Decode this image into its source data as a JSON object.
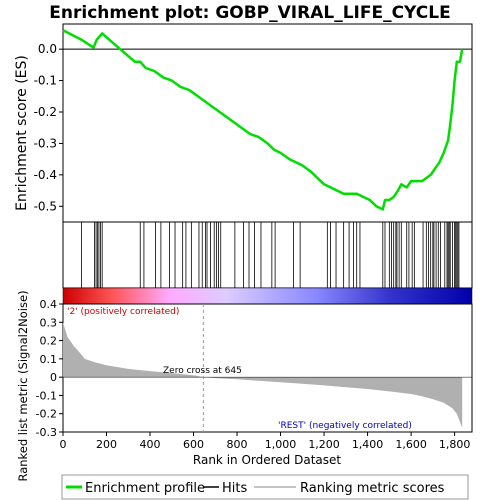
{
  "chart_data": {
    "type": "line",
    "title": "Enrichment plot: GOBP_VIRAL_LIFE_CYCLE",
    "panels": {
      "es": {
        "ylabel": "Enrichment score (ES)",
        "ylim": [
          -0.55,
          0.08
        ],
        "yticks": [
          0.0,
          -0.1,
          -0.2,
          -0.3,
          -0.4,
          -0.5
        ],
        "ytick_labels": [
          "0.0",
          "-0.1",
          "-0.2",
          "-0.3",
          "-0.4",
          "-0.5"
        ],
        "series": [
          {
            "color": "#00dd00",
            "x": [
              0,
              85,
              140,
              155,
              180,
              230,
              280,
              330,
              355,
              380,
              420,
              460,
              500,
              540,
              580,
              620,
              660,
              700,
              740,
              780,
              820,
              860,
              900,
              940,
              970,
              1000,
              1040,
              1070,
              1100,
              1140,
              1170,
              1200,
              1230,
              1260,
              1290,
              1320,
              1350,
              1380,
              1410,
              1440,
              1470,
              1480,
              1500,
              1520,
              1540,
              1555,
              1580,
              1600,
              1620,
              1650,
              1670,
              1690,
              1710,
              1730,
              1750,
              1770,
              1780,
              1790,
              1800,
              1810,
              1825,
              1835
            ],
            "y": [
              0.06,
              0.03,
              0.005,
              0.03,
              0.05,
              0.02,
              -0.01,
              -0.04,
              -0.04,
              -0.06,
              -0.07,
              -0.09,
              -0.1,
              -0.12,
              -0.13,
              -0.15,
              -0.17,
              -0.19,
              -0.21,
              -0.23,
              -0.25,
              -0.27,
              -0.28,
              -0.3,
              -0.32,
              -0.33,
              -0.35,
              -0.36,
              -0.37,
              -0.39,
              -0.41,
              -0.43,
              -0.44,
              -0.45,
              -0.46,
              -0.46,
              -0.46,
              -0.47,
              -0.48,
              -0.5,
              -0.51,
              -0.48,
              -0.48,
              -0.47,
              -0.45,
              -0.43,
              -0.44,
              -0.42,
              -0.42,
              -0.42,
              -0.41,
              -0.4,
              -0.38,
              -0.36,
              -0.33,
              -0.29,
              -0.24,
              -0.18,
              -0.1,
              -0.04,
              -0.04,
              0.0
            ]
          }
        ]
      },
      "hits": {
        "x": [
          85,
          145,
          152,
          158,
          165,
          172,
          180,
          355,
          372,
          425,
          450,
          490,
          515,
          550,
          565,
          590,
          625,
          640,
          655,
          662,
          678,
          695,
          705,
          715,
          725,
          790,
          830,
          855,
          880,
          910,
          960,
          975,
          1060,
          1090,
          1215,
          1230,
          1255,
          1290,
          1315,
          1335,
          1350,
          1365,
          1470,
          1480,
          1500,
          1510,
          1520,
          1530,
          1535,
          1545,
          1555,
          1580,
          1590,
          1605,
          1615,
          1655,
          1670,
          1680,
          1690,
          1700,
          1705,
          1715,
          1725,
          1735,
          1755,
          1765,
          1770,
          1775,
          1780,
          1790,
          1800,
          1805,
          1810,
          1815,
          1820
        ]
      },
      "heatmap": {
        "stops": [
          "#cc0000",
          "#ff5555",
          "#ffaaff",
          "#ddccff",
          "#8888ff",
          "#3333cc",
          "#0000aa"
        ]
      },
      "metric": {
        "ylabel": "Ranked list metric (Signal2Noise)",
        "xlabel": "Rank in Ordered Dataset",
        "ylim": [
          -0.3,
          0.4
        ],
        "yticks": [
          0.4,
          0.3,
          0.2,
          0.1,
          0.0,
          -0.1,
          -0.2,
          -0.3
        ],
        "ytick_labels": [
          "0.4",
          "0.3",
          "0.2",
          "0.1",
          "0",
          "-0.1",
          "-0.2",
          "-0.3"
        ],
        "xlim": [
          0,
          1880
        ],
        "xticks": [
          0,
          200,
          400,
          600,
          800,
          1000,
          1200,
          1400,
          1600,
          1800
        ],
        "xtick_labels": [
          "0",
          "200",
          "400",
          "600",
          "800",
          "1,000",
          "1,200",
          "1,400",
          "1,600",
          "1,800"
        ],
        "fill_color": "#b0b0b0",
        "x": [
          0,
          20,
          50,
          80,
          100,
          150,
          200,
          300,
          400,
          500,
          600,
          645,
          700,
          800,
          900,
          1000,
          1100,
          1200,
          1300,
          1400,
          1500,
          1600,
          1650,
          1700,
          1750,
          1790,
          1810,
          1820,
          1830,
          1835
        ],
        "y": [
          0.3,
          0.22,
          0.17,
          0.13,
          0.1,
          0.08,
          0.065,
          0.045,
          0.033,
          0.022,
          0.01,
          0.0,
          -0.005,
          -0.012,
          -0.02,
          -0.028,
          -0.036,
          -0.045,
          -0.055,
          -0.065,
          -0.078,
          -0.092,
          -0.105,
          -0.12,
          -0.14,
          -0.17,
          -0.2,
          -0.23,
          -0.26,
          -0.28
        ]
      }
    },
    "annotations": {
      "pos_label": "'2' (positively correlated)",
      "neg_label": "'REST' (negatively correlated)",
      "zero_cross": "Zero cross at 645",
      "zero_cross_rank": 645
    },
    "legend": {
      "position": "bottom",
      "entries": [
        {
          "label": "Enrichment profile",
          "color": "#00dd00"
        },
        {
          "label": "Hits",
          "color": "#000000"
        },
        {
          "label": "Ranking metric scores",
          "color": "#b0b0b0"
        }
      ]
    }
  }
}
